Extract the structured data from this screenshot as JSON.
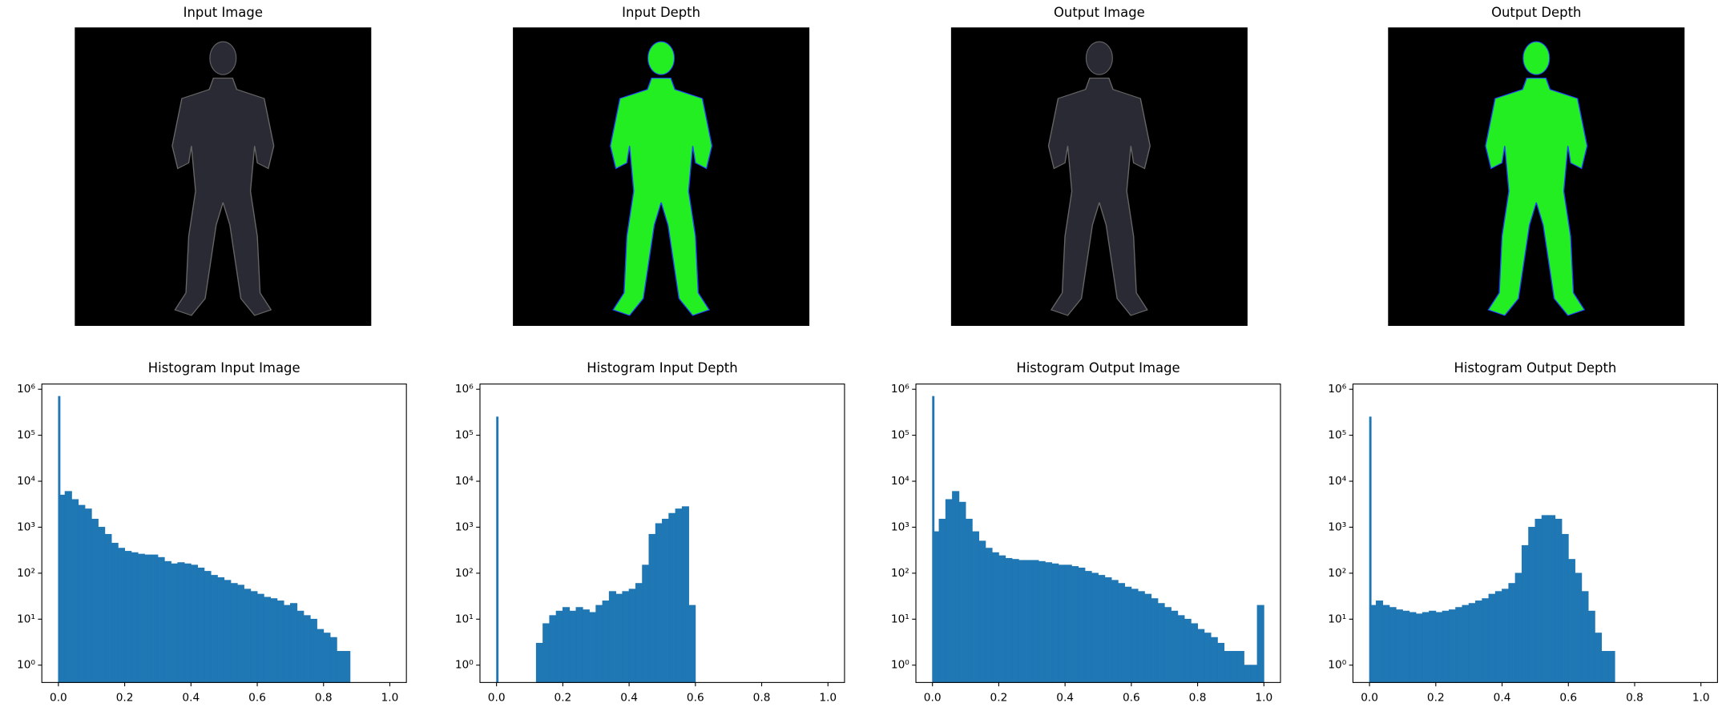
{
  "chart_data": [
    {
      "type": "image",
      "title": "Input Image"
    },
    {
      "type": "image",
      "title": "Input Depth"
    },
    {
      "type": "image",
      "title": "Output Image"
    },
    {
      "type": "image",
      "title": "Output Depth"
    },
    {
      "type": "histogram",
      "title": "Histogram Input Image",
      "color": "#1f77b4",
      "yscale": "log",
      "bins": [
        0,
        0.005,
        0.02,
        0.04,
        0.06,
        0.08,
        0.1,
        0.12,
        0.14,
        0.16,
        0.18,
        0.2,
        0.22,
        0.24,
        0.26,
        0.28,
        0.3,
        0.32,
        0.34,
        0.36,
        0.38,
        0.4,
        0.42,
        0.44,
        0.46,
        0.48,
        0.5,
        0.52,
        0.54,
        0.56,
        0.58,
        0.6,
        0.62,
        0.64,
        0.66,
        0.68,
        0.7,
        0.72,
        0.74,
        0.76,
        0.78,
        0.8,
        0.82,
        0.84,
        0.86,
        0.88,
        0.9,
        0.92,
        0.94,
        0.96,
        0.98,
        1.0
      ],
      "values": [
        700000,
        5000,
        6000,
        4000,
        3000,
        2500,
        1500,
        1000,
        700,
        450,
        350,
        300,
        280,
        260,
        250,
        250,
        220,
        180,
        160,
        170,
        160,
        150,
        130,
        110,
        90,
        80,
        70,
        60,
        55,
        45,
        40,
        35,
        30,
        28,
        25,
        20,
        22,
        15,
        12,
        10,
        6,
        5,
        4,
        2,
        2,
        0,
        0,
        0,
        0,
        0,
        0
      ],
      "xlim": [
        -0.05,
        1.05
      ],
      "ylim": [
        0.42,
        1300000
      ],
      "xticks": [
        {
          "value": 0,
          "label": "0.0"
        },
        0.2,
        0.4,
        0.6,
        0.8,
        {
          "value": 1,
          "label": "1.0"
        }
      ],
      "yticks": [
        {
          "value": 1,
          "label": "10⁰"
        },
        {
          "value": 10,
          "label": "10¹"
        },
        {
          "value": 100,
          "label": "10²"
        },
        {
          "value": 1000,
          "label": "10³"
        },
        {
          "value": 10000,
          "label": "10⁴"
        },
        {
          "value": 100000,
          "label": "10⁵"
        },
        {
          "value": 1000000,
          "label": "10⁶"
        }
      ]
    },
    {
      "type": "histogram",
      "title": "Histogram Input Depth",
      "color": "#1f77b4",
      "yscale": "log",
      "bins": [
        0,
        0.005,
        0.02,
        0.04,
        0.06,
        0.08,
        0.1,
        0.12,
        0.14,
        0.16,
        0.18,
        0.2,
        0.22,
        0.24,
        0.26,
        0.28,
        0.3,
        0.32,
        0.34,
        0.36,
        0.38,
        0.4,
        0.42,
        0.44,
        0.46,
        0.48,
        0.5,
        0.52,
        0.54,
        0.56,
        0.58,
        0.6,
        0.62,
        0.64,
        0.66,
        0.68,
        0.7,
        0.72,
        0.74,
        0.76,
        0.78,
        0.8,
        0.82,
        0.84,
        0.86,
        0.88,
        0.9,
        0.92,
        0.94,
        0.96,
        0.98,
        1.0
      ],
      "values": [
        250000,
        0,
        0,
        0,
        0,
        0,
        0,
        3,
        8,
        12,
        15,
        18,
        15,
        18,
        16,
        14,
        20,
        25,
        40,
        35,
        40,
        45,
        60,
        150,
        700,
        1200,
        1500,
        2000,
        2500,
        2800,
        20,
        0,
        0,
        0,
        0,
        0,
        0,
        0,
        0,
        0,
        0,
        0,
        0,
        0,
        0,
        0,
        0,
        0,
        0,
        0,
        0
      ],
      "xlim": [
        -0.05,
        1.05
      ],
      "ylim": [
        0.42,
        1300000
      ],
      "xticks": [
        {
          "value": 0,
          "label": "0.0"
        },
        0.2,
        0.4,
        0.6,
        0.8,
        {
          "value": 1,
          "label": "1.0"
        }
      ],
      "yticks": [
        {
          "value": 1,
          "label": "10⁰"
        },
        {
          "value": 10,
          "label": "10¹"
        },
        {
          "value": 100,
          "label": "10²"
        },
        {
          "value": 1000,
          "label": "10³"
        },
        {
          "value": 10000,
          "label": "10⁴"
        },
        {
          "value": 100000,
          "label": "10⁵"
        },
        {
          "value": 1000000,
          "label": "10⁶"
        }
      ]
    },
    {
      "type": "histogram",
      "title": "Histogram Output Image",
      "color": "#1f77b4",
      "yscale": "log",
      "bins": [
        0,
        0.005,
        0.02,
        0.04,
        0.06,
        0.08,
        0.1,
        0.12,
        0.14,
        0.16,
        0.18,
        0.2,
        0.22,
        0.24,
        0.26,
        0.28,
        0.3,
        0.32,
        0.34,
        0.36,
        0.38,
        0.4,
        0.42,
        0.44,
        0.46,
        0.48,
        0.5,
        0.52,
        0.54,
        0.56,
        0.58,
        0.6,
        0.62,
        0.64,
        0.66,
        0.68,
        0.7,
        0.72,
        0.74,
        0.76,
        0.78,
        0.8,
        0.82,
        0.84,
        0.86,
        0.88,
        0.9,
        0.92,
        0.94,
        0.96,
        0.98,
        1.0
      ],
      "values": [
        700000,
        800,
        1500,
        4000,
        6000,
        3500,
        1500,
        800,
        500,
        350,
        280,
        240,
        210,
        200,
        190,
        190,
        190,
        180,
        170,
        160,
        150,
        150,
        140,
        130,
        110,
        100,
        90,
        80,
        70,
        60,
        50,
        45,
        40,
        35,
        28,
        22,
        18,
        15,
        12,
        10,
        8,
        6,
        5,
        4,
        3,
        2,
        2,
        2,
        1,
        1,
        20
      ],
      "xlim": [
        -0.05,
        1.05
      ],
      "ylim": [
        0.42,
        1300000
      ],
      "xticks": [
        {
          "value": 0,
          "label": "0.0"
        },
        0.2,
        0.4,
        0.6,
        0.8,
        {
          "value": 1,
          "label": "1.0"
        }
      ],
      "yticks": [
        {
          "value": 1,
          "label": "10⁰"
        },
        {
          "value": 10,
          "label": "10¹"
        },
        {
          "value": 100,
          "label": "10²"
        },
        {
          "value": 1000,
          "label": "10³"
        },
        {
          "value": 10000,
          "label": "10⁴"
        },
        {
          "value": 100000,
          "label": "10⁵"
        },
        {
          "value": 1000000,
          "label": "10⁶"
        }
      ]
    },
    {
      "type": "histogram",
      "title": "Histogram Output Depth",
      "color": "#1f77b4",
      "yscale": "log",
      "bins": [
        0,
        0.005,
        0.02,
        0.04,
        0.06,
        0.08,
        0.1,
        0.12,
        0.14,
        0.16,
        0.18,
        0.2,
        0.22,
        0.24,
        0.26,
        0.28,
        0.3,
        0.32,
        0.34,
        0.36,
        0.38,
        0.4,
        0.42,
        0.44,
        0.46,
        0.48,
        0.5,
        0.52,
        0.54,
        0.56,
        0.58,
        0.6,
        0.62,
        0.64,
        0.66,
        0.68,
        0.7,
        0.72,
        0.74,
        0.76,
        0.78,
        0.8,
        0.82,
        0.84,
        0.86,
        0.88,
        0.9,
        0.92,
        0.94,
        0.96,
        0.98,
        1.0
      ],
      "values": [
        250000,
        20,
        25,
        20,
        18,
        16,
        15,
        14,
        13,
        14,
        15,
        14,
        15,
        16,
        18,
        20,
        22,
        25,
        28,
        35,
        40,
        45,
        60,
        100,
        400,
        1000,
        1500,
        1800,
        1800,
        1500,
        700,
        200,
        100,
        40,
        15,
        5,
        2,
        2,
        0,
        0,
        0,
        0,
        0,
        0,
        0,
        0,
        0,
        0,
        0,
        0,
        0
      ],
      "xlim": [
        -0.05,
        1.05
      ],
      "ylim": [
        0.42,
        1300000
      ],
      "xticks": [
        {
          "value": 0,
          "label": "0.0"
        },
        0.2,
        0.4,
        0.6,
        0.8,
        {
          "value": 1,
          "label": "1.0"
        }
      ],
      "yticks": [
        {
          "value": 1,
          "label": "10⁰"
        },
        {
          "value": 10,
          "label": "10¹"
        },
        {
          "value": 100,
          "label": "10²"
        },
        {
          "value": 1000,
          "label": "10³"
        },
        {
          "value": 10000,
          "label": "10⁴"
        },
        {
          "value": 100000,
          "label": "10⁵"
        },
        {
          "value": 1000000,
          "label": "10⁶"
        }
      ]
    }
  ]
}
